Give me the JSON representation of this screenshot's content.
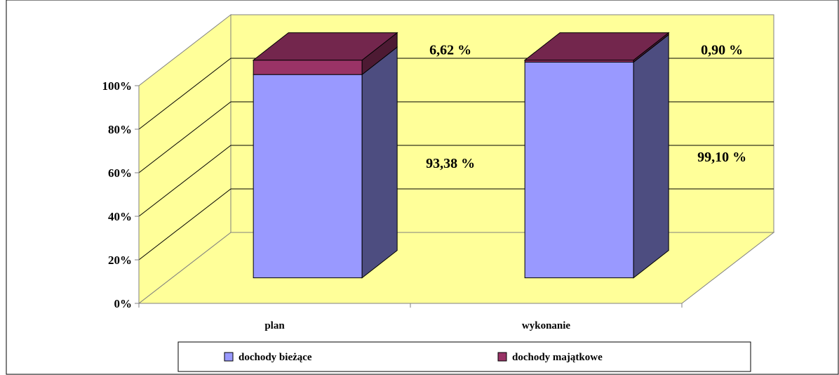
{
  "chart_data": {
    "type": "bar",
    "stacked": true,
    "three_d": true,
    "categories": [
      "plan",
      "wykonanie"
    ],
    "series": [
      {
        "name": "dochody bieżące",
        "values": [
          93.38,
          99.1
        ],
        "labels": [
          "93,38 %",
          "99,10 %"
        ],
        "color": "#9999ff"
      },
      {
        "name": "dochody majątkowe",
        "values": [
          6.62,
          0.9
        ],
        "labels": [
          "6,62 %",
          "0,90 %"
        ],
        "color": "#993366"
      }
    ],
    "yticks": [
      "0%",
      "20%",
      "40%",
      "60%",
      "80%",
      "100%"
    ],
    "ylim": [
      0,
      100
    ],
    "grid": true,
    "legend": "bottom",
    "colors": {
      "wall": "#ffff99",
      "floor": "#ffff99",
      "gridline": "#000000"
    }
  }
}
